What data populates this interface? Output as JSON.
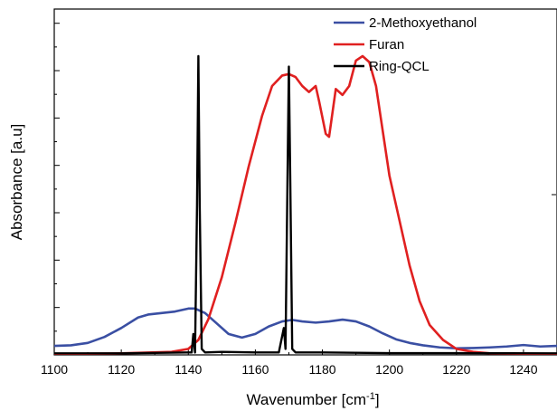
{
  "chart_data": {
    "type": "line",
    "xlabel": "Wavenumber [cm",
    "xlabel_sup": "-1",
    "xlabel_end": "]",
    "ylabel": "Absorbance [a.u]",
    "xlim": [
      1100,
      1250
    ],
    "ylim": [
      0,
      1
    ],
    "x_ticks": [
      1100,
      1120,
      1140,
      1160,
      1180,
      1200,
      1220,
      1240
    ],
    "x_tick_labels": [
      "1100",
      "1120",
      "1140",
      "1160",
      "1180",
      "1200",
      "1220",
      "1240"
    ],
    "y_ticks": [
      0,
      0.156,
      0.312,
      0.468,
      0.624,
      0.78,
      0.936
    ],
    "y_tick_labels_visible": false,
    "grid": false,
    "legend_position": "top-right",
    "series": [
      {
        "name": "2-Methoxyethanol",
        "color": "#3a4fa3",
        "x": [
          1100,
          1105,
          1110,
          1115,
          1120,
          1125,
          1128,
          1132,
          1136,
          1140,
          1142,
          1145,
          1148,
          1152,
          1156,
          1160,
          1164,
          1168,
          1171,
          1174,
          1178,
          1182,
          1186,
          1190,
          1194,
          1198,
          1202,
          1206,
          1210,
          1215,
          1220,
          1225,
          1230,
          1235,
          1240,
          1245,
          1250
        ],
        "y": [
          0.03,
          0.032,
          0.04,
          0.06,
          0.09,
          0.125,
          0.135,
          0.14,
          0.145,
          0.155,
          0.155,
          0.14,
          0.11,
          0.07,
          0.058,
          0.07,
          0.095,
          0.112,
          0.117,
          0.112,
          0.108,
          0.112,
          0.118,
          0.112,
          0.095,
          0.072,
          0.052,
          0.04,
          0.032,
          0.025,
          0.022,
          0.023,
          0.025,
          0.028,
          0.033,
          0.028,
          0.03
        ]
      },
      {
        "name": "Furan",
        "color": "#e02020",
        "x": [
          1100,
          1120,
          1135,
          1140,
          1143,
          1146,
          1150,
          1154,
          1158,
          1162,
          1165,
          1168,
          1170,
          1172,
          1174,
          1176,
          1178,
          1179,
          1181,
          1182,
          1184,
          1186,
          1188,
          1190,
          1192,
          1194,
          1196,
          1198,
          1200,
          1203,
          1206,
          1209,
          1212,
          1216,
          1220,
          1225,
          1230,
          1250
        ],
        "y": [
          0.003,
          0.005,
          0.01,
          0.02,
          0.05,
          0.12,
          0.26,
          0.44,
          0.63,
          0.8,
          0.9,
          0.935,
          0.94,
          0.93,
          0.9,
          0.88,
          0.9,
          0.85,
          0.74,
          0.73,
          0.89,
          0.87,
          0.9,
          0.985,
          1.0,
          0.98,
          0.9,
          0.75,
          0.6,
          0.45,
          0.3,
          0.18,
          0.1,
          0.05,
          0.02,
          0.01,
          0.005,
          0.003
        ]
      },
      {
        "name": "Ring-QCL",
        "color": "#000000",
        "x": [
          1100,
          1120,
          1140,
          1141,
          1141.5,
          1142,
          1142.6,
          1143,
          1143.4,
          1144,
          1145,
          1150,
          1160,
          1167,
          1168.5,
          1169,
          1169.6,
          1170.0,
          1170.4,
          1171,
          1172,
          1180,
          1200,
          1220,
          1250
        ],
        "y": [
          0.005,
          0.005,
          0.008,
          0.008,
          0.07,
          0.008,
          0.5,
          1.0,
          0.5,
          0.02,
          0.008,
          0.01,
          0.008,
          0.008,
          0.09,
          0.02,
          0.6,
          0.965,
          0.6,
          0.02,
          0.008,
          0.008,
          0.006,
          0.006,
          0.005
        ]
      }
    ]
  }
}
